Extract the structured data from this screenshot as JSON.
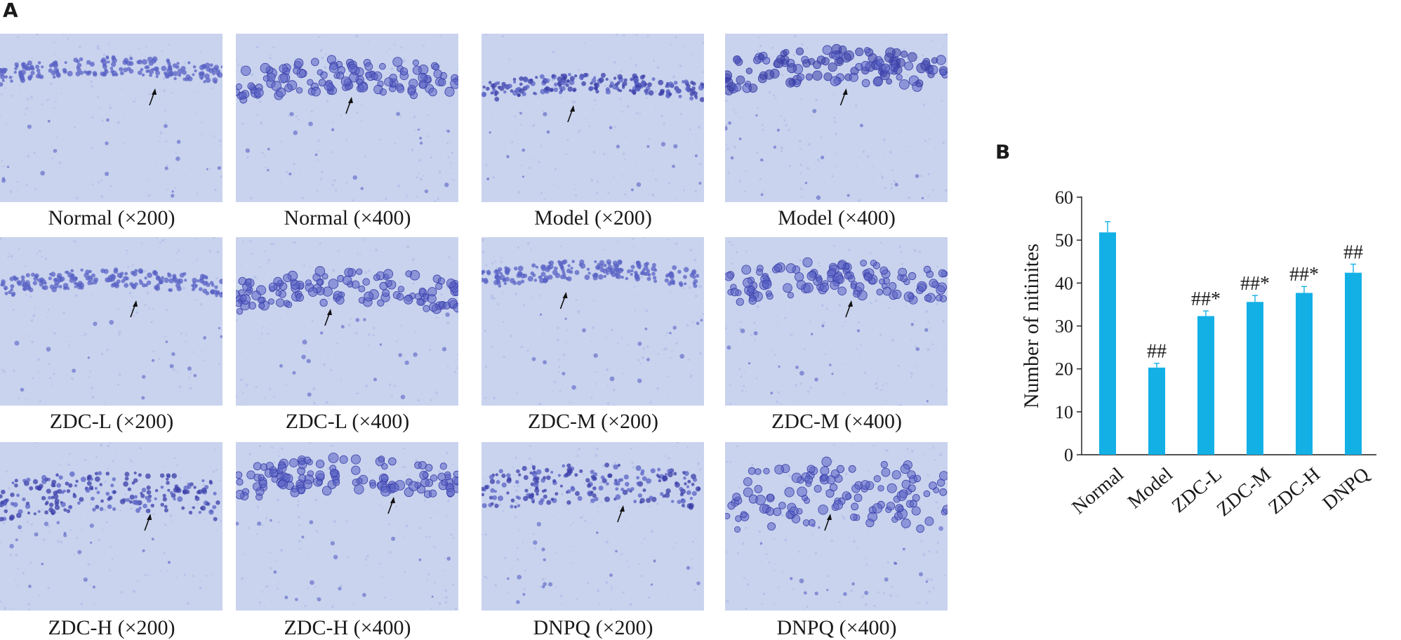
{
  "panels": {
    "a_label": "A",
    "b_label": "B"
  },
  "micrographs": [
    {
      "caption": "Normal (×200)",
      "band": "thin"
    },
    {
      "caption": "Normal (×400)",
      "band": "cells"
    },
    {
      "caption": "Model (×200)",
      "band": "dark"
    },
    {
      "caption": "Model (×400)",
      "band": "darkcells"
    },
    {
      "caption": "ZDC-L (×200)",
      "band": "thin"
    },
    {
      "caption": "ZDC-L (×400)",
      "band": "cells"
    },
    {
      "caption": "ZDC-M (×200)",
      "band": "thin"
    },
    {
      "caption": "ZDC-M (×400)",
      "band": "cells"
    },
    {
      "caption": "ZDC-H (×200)",
      "band": "thick"
    },
    {
      "caption": "ZDC-H (×400)",
      "band": "cells"
    },
    {
      "caption": "DNPQ (×200)",
      "band": "thick"
    },
    {
      "caption": "DNPQ (×400)",
      "band": "scattered"
    }
  ],
  "colors": {
    "tissue_bg": "#c9d3ee",
    "tissue_fine": "#b7c3e8",
    "nuclei": "#5a63c4",
    "nuclei_dark": "#3b3fa8",
    "bar": "#13b0e6",
    "axis": "#1a1a1a"
  },
  "chart_data": {
    "type": "bar",
    "categories": [
      "Normal",
      "Model",
      "ZDC-L",
      "ZDC-M",
      "ZDC-H",
      "DNPQ"
    ],
    "values": [
      51.8,
      20.3,
      32.3,
      35.6,
      37.7,
      42.4
    ],
    "errors": [
      2.5,
      1.0,
      1.2,
      1.5,
      1.5,
      2.0
    ],
    "annotations": [
      "",
      "##",
      "##*",
      "##*",
      "##*",
      "##"
    ],
    "ylabel": "Number of nitinites",
    "xlabel": "",
    "title": "",
    "ylim": [
      0,
      60
    ],
    "yticks": [
      0,
      10,
      20,
      30,
      40,
      50,
      60
    ],
    "grid": false
  }
}
